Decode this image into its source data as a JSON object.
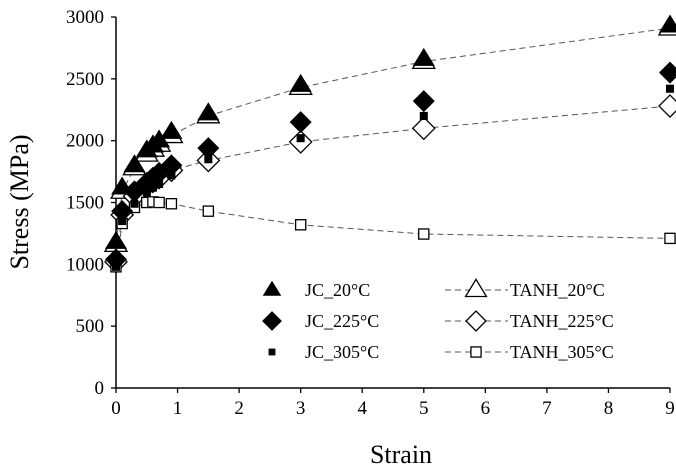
{
  "chart_data": {
    "type": "scatter",
    "title": "",
    "xlabel": "Strain",
    "ylabel": "Stress (MPa)",
    "xlim": [
      0,
      9
    ],
    "ylim": [
      0,
      3000
    ],
    "x_ticks": [
      "0",
      "1",
      "2",
      "3",
      "4",
      "5",
      "6",
      "7",
      "8",
      "9"
    ],
    "y_ticks": [
      "0",
      "500",
      "1000",
      "1500",
      "2000",
      "2500",
      "3000"
    ],
    "grid": false,
    "legend_position": "bottom-center",
    "series": [
      {
        "name": "JC_20°C",
        "marker": "filled-triangle",
        "line": "none",
        "color": "#000000",
        "points": [
          [
            0,
            1180
          ],
          [
            0.1,
            1620
          ],
          [
            0.3,
            1800
          ],
          [
            0.5,
            1920
          ],
          [
            0.6,
            1960
          ],
          [
            0.7,
            2000
          ],
          [
            0.9,
            2070
          ],
          [
            1.5,
            2220
          ],
          [
            3,
            2450
          ],
          [
            5,
            2660
          ],
          [
            9,
            2930
          ]
        ]
      },
      {
        "name": "JC_225°C",
        "marker": "filled-diamond",
        "line": "none",
        "color": "#000000",
        "points": [
          [
            0,
            1040
          ],
          [
            0.1,
            1430
          ],
          [
            0.3,
            1590
          ],
          [
            0.5,
            1660
          ],
          [
            0.6,
            1700
          ],
          [
            0.7,
            1740
          ],
          [
            0.9,
            1800
          ],
          [
            1.5,
            1940
          ],
          [
            3,
            2150
          ],
          [
            5,
            2320
          ],
          [
            9,
            2550
          ]
        ]
      },
      {
        "name": "JC_305°C",
        "marker": "filled-square",
        "line": "none",
        "color": "#000000",
        "points": [
          [
            0,
            980
          ],
          [
            0.1,
            1350
          ],
          [
            0.3,
            1490
          ],
          [
            0.5,
            1580
          ],
          [
            0.6,
            1620
          ],
          [
            0.7,
            1650
          ],
          [
            0.9,
            1720
          ],
          [
            1.5,
            1850
          ],
          [
            3,
            2020
          ],
          [
            5,
            2200
          ],
          [
            9,
            2420
          ]
        ]
      },
      {
        "name": "TANH_20°C",
        "marker": "open-triangle",
        "line": "dashed",
        "color": "#000000",
        "points": [
          [
            0,
            1160
          ],
          [
            0.1,
            1590
          ],
          [
            0.3,
            1780
          ],
          [
            0.5,
            1890
          ],
          [
            0.6,
            1930
          ],
          [
            0.7,
            1970
          ],
          [
            0.9,
            2040
          ],
          [
            1.5,
            2200
          ],
          [
            3,
            2430
          ],
          [
            5,
            2640
          ],
          [
            9,
            2910
          ]
        ]
      },
      {
        "name": "TANH_225°C",
        "marker": "open-diamond",
        "line": "dashed",
        "color": "#000000",
        "points": [
          [
            0,
            1020
          ],
          [
            0.1,
            1400
          ],
          [
            0.3,
            1550
          ],
          [
            0.5,
            1640
          ],
          [
            0.6,
            1670
          ],
          [
            0.7,
            1700
          ],
          [
            0.9,
            1760
          ],
          [
            1.5,
            1840
          ],
          [
            3,
            1990
          ],
          [
            5,
            2100
          ],
          [
            9,
            2280
          ]
        ]
      },
      {
        "name": "TANH_305°C",
        "marker": "open-square",
        "line": "dashed",
        "color": "#000000",
        "points": [
          [
            0,
            980
          ],
          [
            0.1,
            1330
          ],
          [
            0.3,
            1460
          ],
          [
            0.5,
            1500
          ],
          [
            0.6,
            1505
          ],
          [
            0.7,
            1500
          ],
          [
            0.9,
            1490
          ],
          [
            1.5,
            1430
          ],
          [
            3,
            1320
          ],
          [
            5,
            1245
          ],
          [
            9,
            1210
          ]
        ]
      }
    ]
  }
}
